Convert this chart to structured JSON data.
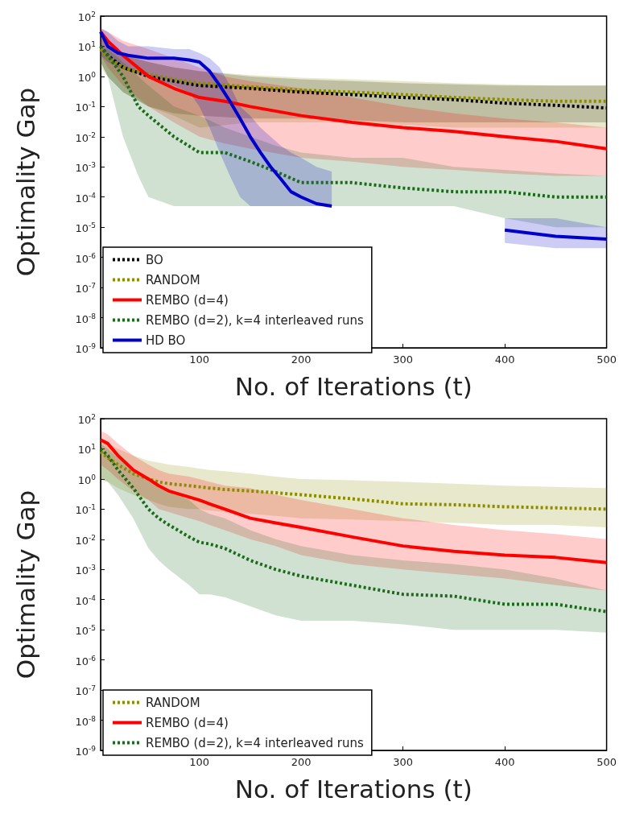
{
  "chart_data": [
    {
      "type": "line",
      "xlabel": "No. of Iterations (t)",
      "ylabel": "Optimality Gap",
      "log": "y",
      "legend": "bottom left",
      "xlim": [
        3,
        500
      ],
      "xticks": [
        100,
        200,
        300,
        400,
        500
      ],
      "ylim": [
        1e-09,
        100
      ],
      "yticks": [
        {
          "value": 1e-09,
          "label": "10$^{-9}$"
        },
        {
          "value": 1e-08,
          "label": "10$^{-8}$"
        },
        {
          "value": 1e-07,
          "label": "10$^{-7}$"
        },
        {
          "value": 1e-06,
          "label": "10$^{-6}$"
        },
        {
          "value": 1e-05,
          "label": "10$^{-5}$"
        },
        {
          "value": 0.0001,
          "label": "10$^{-4}$"
        },
        {
          "value": 0.001,
          "label": "10$^{-3}$"
        },
        {
          "value": 0.01,
          "label": "10$^{-2}$"
        },
        {
          "value": 0.1,
          "label": "10$^{-1}$"
        },
        {
          "value": 1,
          "label": "10$^{0}$"
        },
        {
          "value": 10,
          "label": "10$^{1}$"
        },
        {
          "value": 100,
          "label": "10$^{2}$"
        }
      ],
      "series": [
        {
          "name": "BO",
          "color": "#000000",
          "line_style": "dashed",
          "x": [
            3,
            10,
            25,
            50,
            75,
            100,
            150,
            200,
            250,
            300,
            350,
            400,
            450,
            500
          ],
          "values": [
            10,
            5,
            2,
            1,
            0.7,
            0.5,
            0.4,
            0.3,
            0.25,
            0.2,
            0.17,
            0.13,
            0.11,
            0.09
          ],
          "upper": [
            20,
            10,
            5,
            3,
            2,
            1.5,
            1,
            0.8,
            0.7,
            0.6,
            0.55,
            0.5,
            0.5,
            0.5
          ],
          "lower": [
            3,
            1,
            0.3,
            0.1,
            0.06,
            0.05,
            0.04,
            0.04,
            0.035,
            0.03,
            0.03,
            0.03,
            0.03,
            0.03
          ]
        },
        {
          "name": "RANDOM",
          "color": "#8c8c00",
          "line_style": "dashed",
          "x": [
            3,
            10,
            25,
            50,
            75,
            100,
            150,
            200,
            250,
            300,
            350,
            400,
            450,
            500
          ],
          "values": [
            8,
            4,
            2,
            1.2,
            0.8,
            0.6,
            0.45,
            0.35,
            0.3,
            0.25,
            0.2,
            0.17,
            0.15,
            0.15
          ],
          "upper": [
            20,
            12,
            6,
            3,
            2,
            1.5,
            1.1,
            0.9,
            0.8,
            0.7,
            0.6,
            0.55,
            0.5,
            0.5
          ],
          "lower": [
            2,
            1,
            0.3,
            0.1,
            0.05,
            0.02,
            0.03,
            0.03,
            0.03,
            0.025,
            0.02,
            0.02,
            0.02,
            0.02
          ]
        },
        {
          "name": "REMBO (d=4)",
          "color": "#ff0000",
          "line_style": "solid",
          "x": [
            3,
            10,
            25,
            50,
            75,
            100,
            125,
            150,
            200,
            250,
            300,
            350,
            400,
            450,
            500
          ],
          "values": [
            30,
            15,
            5,
            1,
            0.4,
            0.2,
            0.15,
            0.1,
            0.05,
            0.03,
            0.02,
            0.015,
            0.01,
            0.007,
            0.004
          ],
          "upper": [
            40,
            30,
            15,
            8,
            4,
            2,
            1,
            0.7,
            0.4,
            0.2,
            0.1,
            0.06,
            0.04,
            0.03,
            0.02
          ],
          "lower": [
            5,
            2,
            0.5,
            0.1,
            0.03,
            0.01,
            0.006,
            0.004,
            0.002,
            0.0015,
            0.001,
            0.0008,
            0.0006,
            0.0005,
            0.0005
          ]
        },
        {
          "name": "REMBO (d=2), k=4 interleaved runs",
          "color": "#1a6b1a",
          "line_style": "dashed",
          "x": [
            3,
            10,
            25,
            40,
            50,
            75,
            100,
            125,
            150,
            175,
            200,
            250,
            300,
            350,
            400,
            450,
            500
          ],
          "values": [
            10,
            5,
            1,
            0.1,
            0.05,
            0.01,
            0.003,
            0.003,
            0.0015,
            0.0007,
            0.0003,
            0.0003,
            0.0002,
            0.00015,
            0.00015,
            0.0001,
            0.0001
          ],
          "upper": [
            10,
            8,
            3,
            1,
            0.5,
            0.1,
            0.05,
            0.02,
            0.01,
            0.005,
            0.003,
            0.002,
            0.002,
            0.001,
            0.0008,
            0.0006,
            0.0005
          ],
          "lower": [
            3,
            1,
            0.01,
            0.0005,
            0.0001,
            5e-05,
            5e-05,
            5e-05,
            5e-05,
            5e-05,
            5e-05,
            5e-05,
            5e-05,
            5e-05,
            2e-05,
            1e-05,
            1e-05
          ]
        },
        {
          "name": "HD BO",
          "color": "#0000cc",
          "line_style": "solid",
          "x": [
            3,
            10,
            20,
            30,
            50,
            75,
            90,
            100,
            110,
            120,
            130,
            140,
            150,
            160,
            170,
            180,
            190,
            200,
            215,
            230,
            250,
            300,
            350,
            400,
            450,
            500
          ],
          "values": [
            30,
            10,
            6,
            5,
            4,
            4,
            3.5,
            3,
            1.5,
            0.5,
            0.15,
            0.04,
            0.01,
            0.003,
            0.001,
            0.0004,
            0.00015,
            0.0001,
            6e-05,
            5e-05,
            null,
            null,
            null,
            8e-06,
            5e-06,
            4e-06
          ],
          "upper": [
            40,
            30,
            15,
            10,
            10,
            8,
            8,
            6,
            4,
            2,
            0.5,
            0.1,
            0.05,
            0.02,
            0.01,
            0.005,
            0.003,
            0.002,
            0.001,
            0.0007,
            null,
            null,
            null,
            2e-05,
            2e-05,
            1e-05
          ],
          "lower": [
            5,
            3,
            2,
            1.5,
            1,
            0.5,
            0.3,
            0.1,
            0.02,
            0.003,
            0.0005,
            0.0001,
            5e-05,
            5e-05,
            5e-05,
            5e-05,
            5e-05,
            5e-05,
            5e-05,
            5e-05,
            null,
            null,
            null,
            3e-06,
            2e-06,
            2e-06
          ]
        }
      ]
    },
    {
      "type": "line",
      "xlabel": "No. of Iterations (t)",
      "ylabel": "Optimality Gap",
      "log": "y",
      "legend": "bottom left",
      "xlim": [
        3,
        500
      ],
      "xticks": [
        100,
        200,
        300,
        400,
        500
      ],
      "ylim": [
        1e-09,
        100
      ],
      "yticks": [
        {
          "value": 1e-09,
          "label": "10$^{-9}$"
        },
        {
          "value": 1e-08,
          "label": "10$^{-8}$"
        },
        {
          "value": 1e-07,
          "label": "10$^{-7}$"
        },
        {
          "value": 1e-06,
          "label": "10$^{-6}$"
        },
        {
          "value": 1e-05,
          "label": "10$^{-5}$"
        },
        {
          "value": 0.0001,
          "label": "10$^{-4}$"
        },
        {
          "value": 0.001,
          "label": "10$^{-3}$"
        },
        {
          "value": 0.01,
          "label": "10$^{-2}$"
        },
        {
          "value": 0.1,
          "label": "10$^{-1}$"
        },
        {
          "value": 1,
          "label": "10$^{0}$"
        },
        {
          "value": 10,
          "label": "10$^{1}$"
        },
        {
          "value": 100,
          "label": "10$^{2}$"
        }
      ],
      "series": [
        {
          "name": "RANDOM",
          "color": "#8c8c00",
          "line_style": "dashed",
          "x": [
            3,
            10,
            20,
            35,
            50,
            60,
            70,
            90,
            100,
            110,
            125,
            150,
            175,
            200,
            250,
            300,
            350,
            400,
            450,
            500
          ],
          "values": [
            8,
            5,
            3,
            1.5,
            1,
            0.8,
            0.7,
            0.6,
            0.55,
            0.5,
            0.45,
            0.4,
            0.35,
            0.3,
            0.22,
            0.15,
            0.14,
            0.12,
            0.11,
            0.1
          ],
          "upper": [
            20,
            15,
            10,
            6,
            4,
            3.5,
            3,
            2.5,
            2.2,
            2,
            1.8,
            1.5,
            1.2,
            1,
            0.9,
            0.8,
            0.7,
            0.6,
            0.55,
            0.5
          ],
          "lower": [
            1,
            0.8,
            0.5,
            0.3,
            0.2,
            0.15,
            0.12,
            0.1,
            0.1,
            0.09,
            0.08,
            0.07,
            0.06,
            0.05,
            0.045,
            0.04,
            0.035,
            0.03,
            0.03,
            0.025
          ]
        },
        {
          "name": "REMBO (d=4)",
          "color": "#ff0000",
          "line_style": "solid",
          "x": [
            3,
            10,
            20,
            35,
            50,
            60,
            70,
            90,
            100,
            110,
            125,
            150,
            175,
            200,
            250,
            300,
            350,
            400,
            450,
            500
          ],
          "values": [
            20,
            15,
            6,
            2,
            1,
            0.6,
            0.4,
            0.25,
            0.2,
            0.15,
            0.1,
            0.05,
            0.035,
            0.025,
            0.012,
            0.006,
            0.004,
            0.003,
            0.0025,
            0.0017
          ],
          "upper": [
            40,
            30,
            15,
            6,
            3,
            2,
            1.5,
            1.2,
            1,
            0.8,
            0.6,
            0.5,
            0.3,
            0.2,
            0.1,
            0.05,
            0.03,
            0.02,
            0.015,
            0.01
          ],
          "lower": [
            3,
            2,
            1,
            0.4,
            0.2,
            0.1,
            0.08,
            0.05,
            0.04,
            0.03,
            0.02,
            0.01,
            0.006,
            0.003,
            0.0015,
            0.001,
            0.0007,
            0.0005,
            0.0003,
            0.0002
          ]
        },
        {
          "name": "REMBO (d=2), k=4 interleaved runs",
          "color": "#1a6b1a",
          "line_style": "dashed",
          "x": [
            3,
            10,
            20,
            35,
            50,
            60,
            70,
            90,
            100,
            110,
            125,
            150,
            175,
            200,
            250,
            300,
            350,
            400,
            450,
            500
          ],
          "values": [
            10,
            6,
            2,
            0.5,
            0.1,
            0.05,
            0.03,
            0.012,
            0.008,
            0.007,
            0.005,
            0.002,
            0.001,
            0.0006,
            0.0003,
            0.00015,
            0.00013,
            7e-05,
            7e-05,
            4e-05
          ],
          "upper": [
            15,
            10,
            5,
            2,
            1,
            0.6,
            0.4,
            0.2,
            0.1,
            0.07,
            0.05,
            0.02,
            0.01,
            0.006,
            0.003,
            0.002,
            0.0015,
            0.001,
            0.0005,
            0.0002
          ],
          "lower": [
            1,
            0.8,
            0.3,
            0.05,
            0.005,
            0.002,
            0.001,
            0.0003,
            0.00015,
            0.00015,
            0.00012,
            6e-05,
            3e-05,
            2e-05,
            2e-05,
            1.5e-05,
            1e-05,
            1e-05,
            1e-05,
            8e-06
          ]
        }
      ]
    }
  ]
}
